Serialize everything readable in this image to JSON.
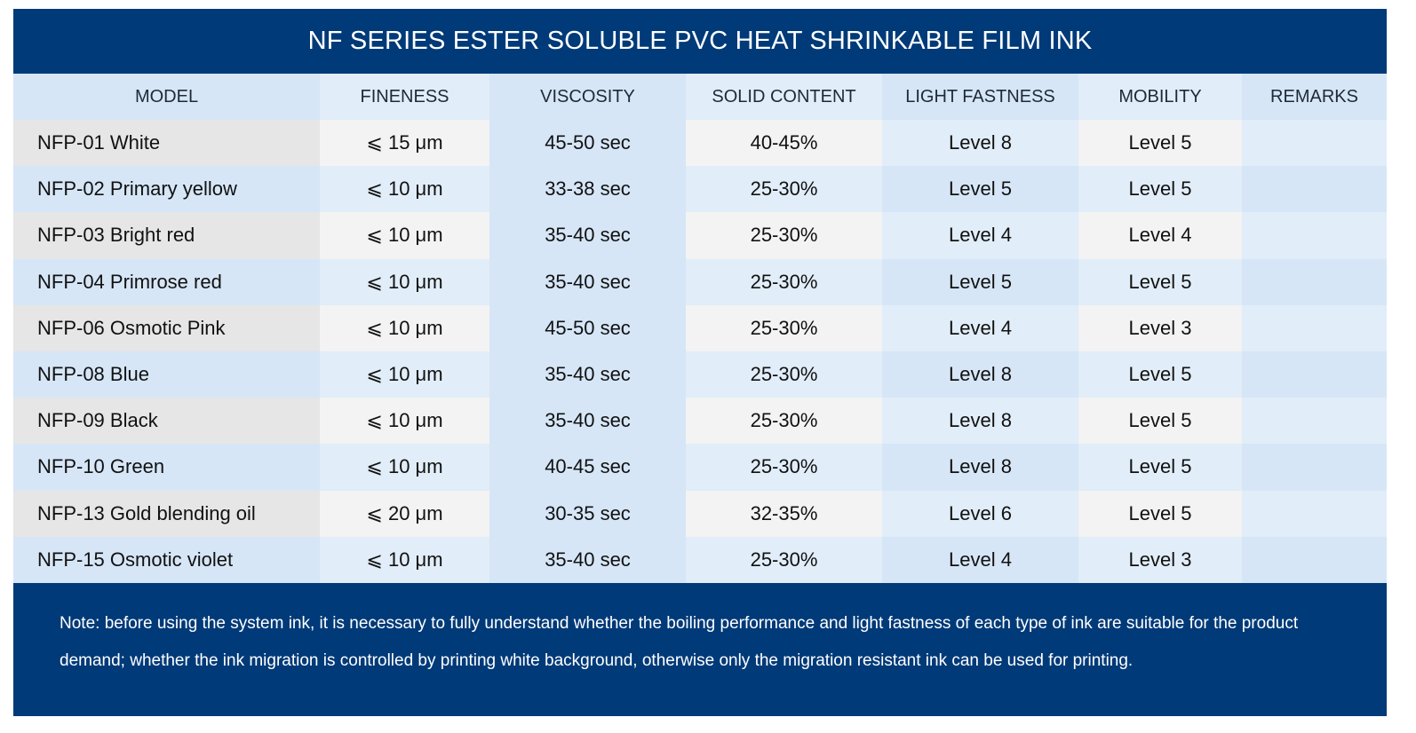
{
  "title": "NF SERIES ESTER SOLUBLE PVC HEAT SHRINKABLE FILM INK",
  "headers": [
    "MODEL",
    "FINENESS",
    "VISCOSITY",
    "SOLID CONTENT",
    "LIGHT FASTNESS",
    "MOBILITY",
    "REMARKS"
  ],
  "rows": [
    {
      "model": "NFP-01 White",
      "fineness": "⩽ 15  μm",
      "viscosity": "45-50 sec",
      "solid": "40-45%",
      "light": "Level 8",
      "mobility": "Level 5",
      "remarks": ""
    },
    {
      "model": "NFP-02 Primary yellow",
      "fineness": "⩽ 10  μm",
      "viscosity": "33-38 sec",
      "solid": "25-30%",
      "light": "Level 5",
      "mobility": "Level 5",
      "remarks": ""
    },
    {
      "model": "NFP-03 Bright red",
      "fineness": "⩽ 10  μm",
      "viscosity": "35-40 sec",
      "solid": "25-30%",
      "light": "Level 4",
      "mobility": "Level 4",
      "remarks": ""
    },
    {
      "model": "NFP-04 Primrose red",
      "fineness": "⩽ 10  μm",
      "viscosity": "35-40 sec",
      "solid": "25-30%",
      "light": "Level 5",
      "mobility": "Level 5",
      "remarks": ""
    },
    {
      "model": "NFP-06 Osmotic Pink",
      "fineness": "⩽ 10  μm",
      "viscosity": "45-50 sec",
      "solid": "25-30%",
      "light": "Level 4",
      "mobility": "Level 3",
      "remarks": ""
    },
    {
      "model": "NFP-08 Blue",
      "fineness": "⩽ 10  μm",
      "viscosity": "35-40 sec",
      "solid": "25-30%",
      "light": "Level 8",
      "mobility": "Level 5",
      "remarks": ""
    },
    {
      "model": "NFP-09 Black",
      "fineness": "⩽ 10  μm",
      "viscosity": "35-40 sec",
      "solid": "25-30%",
      "light": "Level 8",
      "mobility": "Level 5",
      "remarks": ""
    },
    {
      "model": "NFP-10 Green",
      "fineness": "⩽ 10  μm",
      "viscosity": "40-45 sec",
      "solid": "25-30%",
      "light": "Level 8",
      "mobility": "Level 5",
      "remarks": ""
    },
    {
      "model": "NFP-13 Gold blending oil",
      "fineness": "⩽ 20  μm",
      "viscosity": "30-35 sec",
      "solid": "32-35%",
      "light": "Level 6",
      "mobility": "Level 5",
      "remarks": ""
    },
    {
      "model": "NFP-15 Osmotic violet",
      "fineness": "⩽ 10  μm",
      "viscosity": "35-40 sec",
      "solid": "25-30%",
      "light": "Level 4",
      "mobility": "Level 3",
      "remarks": ""
    }
  ],
  "note": "Note: before using the system ink, it is necessary to fully understand whether the boiling performance and light fastness of each type of ink are suitable for the product demand; whether the ink migration is controlled by printing white background, otherwise only the migration resistant ink can be used for printing.",
  "colors": {
    "brand": "#003a78",
    "header_cells": [
      "#d6e6f7",
      "#e1edf8",
      "#d6e6f7",
      "#e1edf8",
      "#d6e6f7",
      "#e1edf8",
      "#d6e6f7"
    ],
    "odd_row_cells": [
      "#e6e6e6",
      "#f3f3f3",
      "#d6e6f7",
      "#f3f3f3",
      "#e1edf8",
      "#f3f3f3",
      "#e1edf8"
    ],
    "even_row_cells": [
      "#d6e6f7",
      "#e1edf8",
      "#d6e6f7",
      "#e1edf8",
      "#d6e6f7",
      "#e1edf8",
      "#d6e6f7"
    ]
  }
}
